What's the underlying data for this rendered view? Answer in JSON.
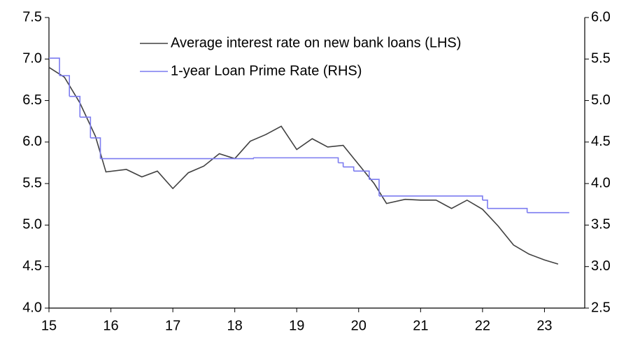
{
  "chart_data": {
    "type": "line",
    "xlim": [
      15,
      23.65
    ],
    "xticks": [
      15,
      16,
      17,
      18,
      19,
      20,
      21,
      22,
      23
    ],
    "ylim": [
      4,
      7.5
    ],
    "yticks": [
      {
        "value": 4,
        "label": "4.0"
      },
      4.5,
      {
        "value": 5,
        "label": "5.0"
      },
      5.5,
      {
        "value": 6,
        "label": "6.0"
      },
      6.5,
      {
        "value": 7,
        "label": "7.0"
      },
      7.5
    ],
    "y2lim": [
      2.5,
      6
    ],
    "y2ticks": [
      2.5,
      {
        "value": 3,
        "label": "3.0"
      },
      3.5,
      {
        "value": 4,
        "label": "4.0"
      },
      4.5,
      {
        "value": 5,
        "label": "5.0"
      },
      5.5,
      {
        "value": 6,
        "label": "6.0"
      }
    ],
    "legend": "top",
    "series": [
      {
        "name": "Average interest rate on new bank loans (LHS)",
        "color": "#404040",
        "x": [
          15.0,
          15.25,
          15.5,
          15.75,
          15.92,
          16.25,
          16.5,
          16.75,
          17.0,
          17.25,
          17.5,
          17.75,
          18.0,
          18.25,
          18.5,
          18.75,
          19.0,
          19.25,
          19.5,
          19.75,
          20.0,
          20.25,
          20.45,
          20.75,
          21.0,
          21.25,
          21.5,
          21.75,
          22.0,
          22.25,
          22.5,
          22.75,
          23.0,
          23.22
        ],
        "values": [
          6.9,
          6.78,
          6.47,
          6.07,
          5.64,
          5.67,
          5.58,
          5.65,
          5.44,
          5.63,
          5.71,
          5.86,
          5.8,
          6.01,
          6.09,
          6.19,
          5.91,
          6.04,
          5.94,
          5.96,
          5.73,
          5.5,
          5.26,
          5.31,
          5.3,
          5.3,
          5.2,
          5.3,
          5.19,
          4.99,
          4.76,
          4.65,
          4.58,
          4.53
        ]
      },
      {
        "name": "1-year Loan Prime Rate (RHS)",
        "color": "#7b7bf0",
        "axis": "y2",
        "step": "post",
        "x": [
          15.0,
          15.17,
          15.33,
          15.5,
          15.67,
          15.83,
          18.3,
          19.67,
          19.75,
          19.92,
          20.17,
          20.33,
          22.0,
          22.08,
          22.72,
          23.4
        ],
        "values": [
          5.51,
          5.3,
          5.05,
          4.8,
          4.55,
          4.3,
          4.31,
          4.25,
          4.2,
          4.15,
          4.05,
          3.85,
          3.8,
          3.7,
          3.65,
          3.65
        ]
      }
    ]
  }
}
